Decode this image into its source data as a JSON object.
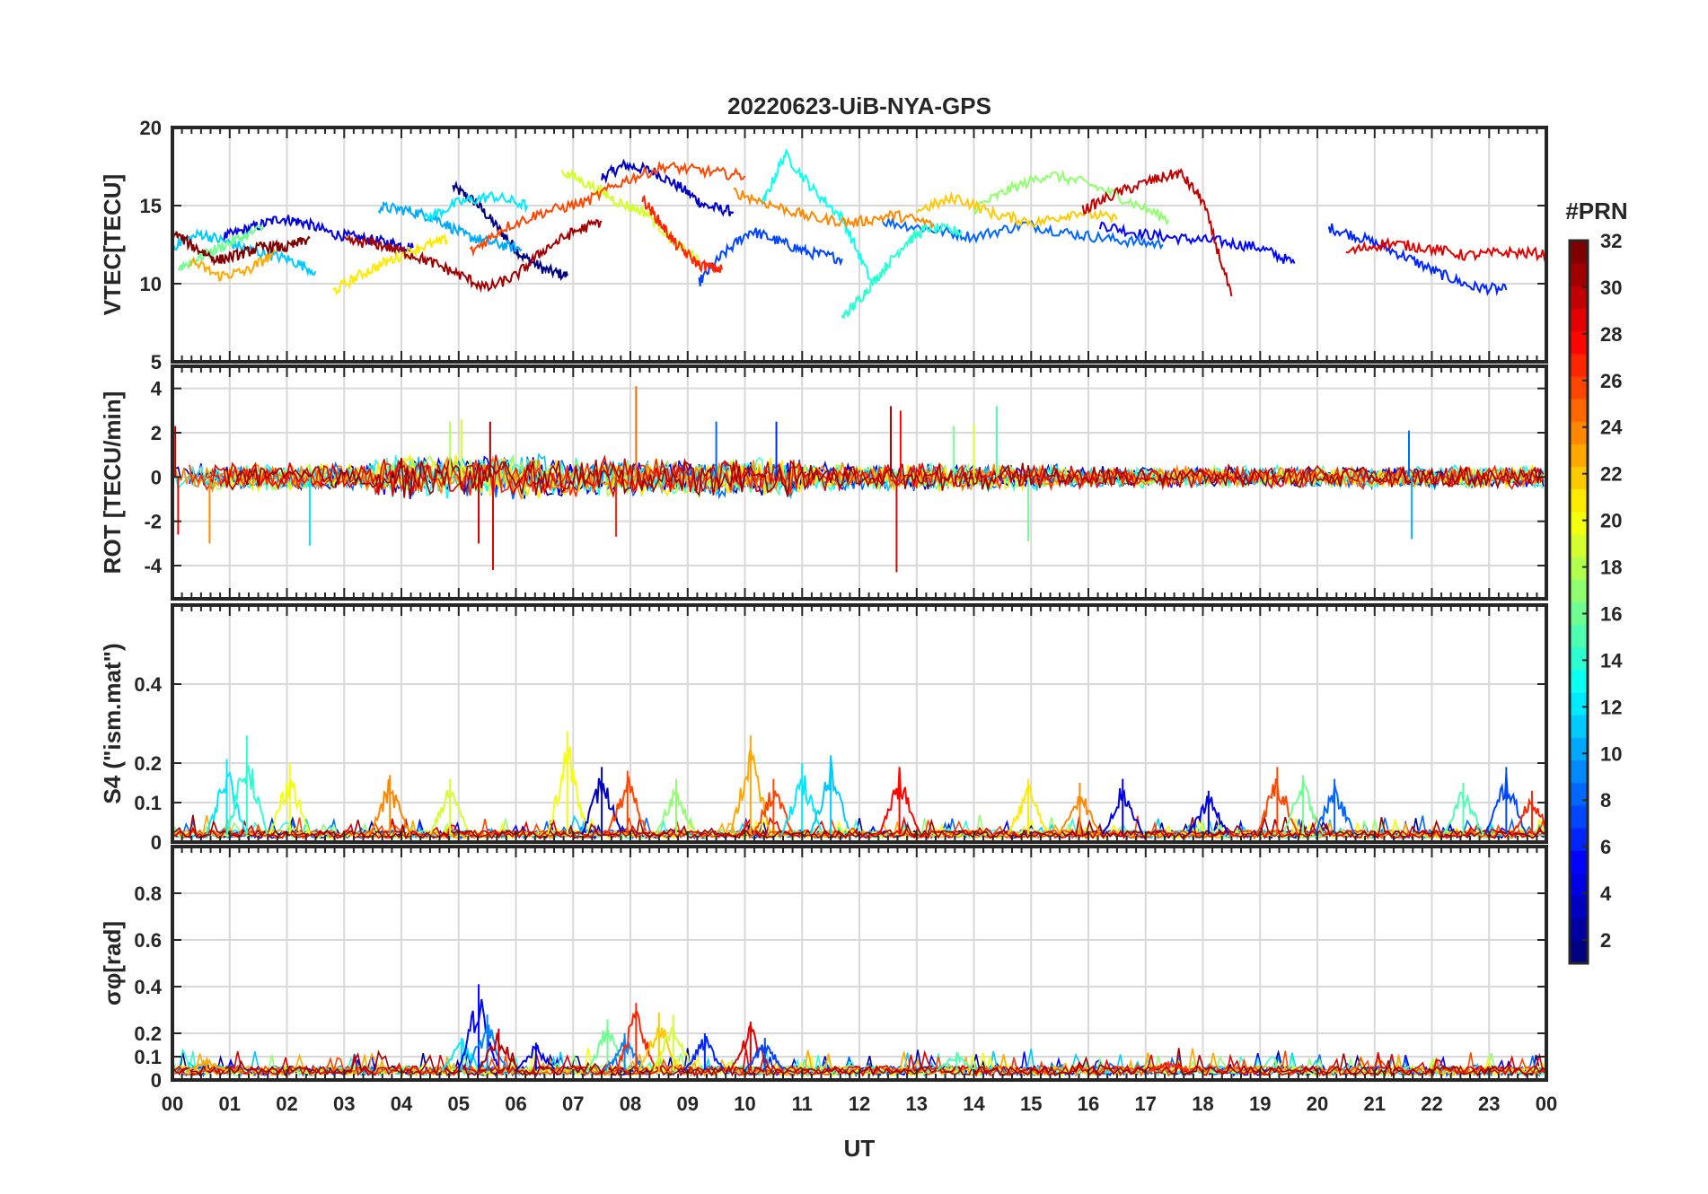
{
  "figure": {
    "title": "20220623-UiB-NYA-GPS",
    "xlabel": "UT",
    "x_ticks": [
      "00",
      "01",
      "02",
      "03",
      "04",
      "05",
      "06",
      "07",
      "08",
      "09",
      "10",
      "11",
      "12",
      "13",
      "14",
      "15",
      "16",
      "17",
      "18",
      "19",
      "20",
      "21",
      "22",
      "23",
      "00"
    ]
  },
  "colorbar": {
    "label": "#PRN",
    "colormap": "jet",
    "range": [
      1,
      32
    ],
    "ticks": [
      "2",
      "4",
      "6",
      "8",
      "10",
      "12",
      "14",
      "16",
      "18",
      "20",
      "22",
      "24",
      "26",
      "28",
      "30",
      "32"
    ]
  },
  "chart_data": [
    {
      "type": "line",
      "panel": "vtec",
      "title": "20220623-UiB-NYA-GPS",
      "ylabel": "VTEC[TECU]",
      "xlabel": "",
      "xlim": [
        0,
        24
      ],
      "ylim": [
        5,
        20
      ],
      "y_ticks": [
        "5",
        "10",
        "15",
        "20"
      ],
      "grid": true,
      "series_note_values": "per-PRN curves; values estimated",
      "series": [
        {
          "prn": 1,
          "x": [
            4.9,
            5.3,
            5.7,
            6.1,
            6.5,
            6.9
          ],
          "y": [
            16.2,
            15.2,
            13.5,
            11.8,
            10.9,
            10.5
          ]
        },
        {
          "prn": 3,
          "x": [
            7.5,
            7.9,
            8.4,
            8.9,
            9.3,
            9.8
          ],
          "y": [
            16.8,
            17.6,
            17.2,
            16.1,
            15.0,
            14.6
          ]
        },
        {
          "prn": 4,
          "x": [
            0.9,
            1.4,
            1.9,
            2.3,
            2.8,
            3.3,
            3.8,
            4.2
          ],
          "y": [
            13.0,
            13.6,
            14.2,
            13.9,
            13.2,
            12.9,
            12.6,
            12.3
          ]
        },
        {
          "prn": 5,
          "x": [
            16.2,
            16.9,
            17.6,
            18.3,
            19.0,
            19.6
          ],
          "y": [
            13.8,
            13.2,
            12.9,
            12.7,
            12.3,
            11.3
          ]
        },
        {
          "prn": 6,
          "x": [
            20.2,
            20.8,
            21.5,
            22.1,
            22.7,
            23.3
          ],
          "y": [
            13.6,
            12.9,
            11.8,
            10.7,
            9.8,
            9.6
          ]
        },
        {
          "prn": 7,
          "x": [
            9.2,
            9.6,
            10.1,
            10.6,
            11.1,
            11.7
          ],
          "y": [
            10.1,
            11.8,
            13.4,
            12.7,
            12.0,
            11.6
          ]
        },
        {
          "prn": 8,
          "x": [
            12.4,
            13.2,
            14.0,
            14.9,
            15.7,
            16.5,
            17.3
          ],
          "y": [
            14.0,
            13.5,
            13.0,
            13.8,
            13.2,
            12.8,
            12.5
          ]
        },
        {
          "prn": 10,
          "x": [
            3.6,
            4.1,
            4.6,
            5.1,
            5.6,
            6.1
          ],
          "y": [
            14.9,
            14.7,
            14.2,
            13.1,
            12.6,
            12.2
          ]
        },
        {
          "prn": 11,
          "x": [
            0.0,
            0.5,
            1.0,
            1.5,
            2.0,
            2.5
          ],
          "y": [
            12.4,
            13.2,
            12.6,
            12.0,
            11.6,
            10.8
          ]
        },
        {
          "prn": 12,
          "x": [
            4.4,
            5.0,
            5.6,
            6.2
          ],
          "y": [
            14.1,
            15.2,
            15.6,
            15.0
          ]
        },
        {
          "prn": 13,
          "x": [
            10.3,
            10.7,
            11.2,
            11.7,
            12.2
          ],
          "y": [
            15.0,
            18.3,
            16.0,
            14.2,
            10.2
          ]
        },
        {
          "prn": 14,
          "x": [
            11.7,
            12.0,
            12.4,
            12.8,
            13.2,
            13.8
          ],
          "y": [
            7.8,
            9.0,
            10.8,
            12.6,
            13.6,
            13.3
          ]
        },
        {
          "prn": 16,
          "x": [
            0.1,
            0.6,
            1.1,
            1.6
          ],
          "y": [
            11.0,
            11.9,
            12.8,
            13.6
          ]
        },
        {
          "prn": 17,
          "x": [
            14.0,
            14.6,
            15.3,
            16.0,
            16.7,
            17.4
          ],
          "y": [
            14.8,
            16.0,
            17.0,
            16.4,
            15.3,
            14.1
          ]
        },
        {
          "prn": 19,
          "x": [
            6.8,
            7.3,
            7.8,
            8.3,
            8.8,
            9.2
          ],
          "y": [
            17.2,
            16.3,
            15.2,
            14.5,
            12.5,
            11.5
          ]
        },
        {
          "prn": 21,
          "x": [
            2.8,
            3.3,
            3.8,
            4.3,
            4.8
          ],
          "y": [
            9.5,
            10.6,
            11.5,
            12.3,
            12.8
          ]
        },
        {
          "prn": 22,
          "x": [
            13.0,
            13.7,
            14.4,
            15.1,
            15.8,
            16.5
          ],
          "y": [
            14.7,
            15.5,
            14.4,
            13.9,
            14.6,
            14.1
          ]
        },
        {
          "prn": 23,
          "x": [
            0.3,
            0.8,
            1.3,
            1.8
          ],
          "y": [
            11.5,
            10.5,
            10.8,
            12.0
          ]
        },
        {
          "prn": 24,
          "x": [
            9.8,
            10.5,
            11.2,
            11.9,
            12.6,
            13.3
          ],
          "y": [
            15.9,
            15.0,
            14.2,
            13.9,
            14.4,
            13.8
          ]
        },
        {
          "prn": 26,
          "x": [
            5.2,
            5.8,
            6.5,
            7.2,
            7.9,
            8.6,
            9.3,
            10.0
          ],
          "y": [
            12.0,
            13.6,
            14.6,
            15.2,
            16.6,
            17.5,
            17.2,
            16.9
          ]
        },
        {
          "prn": 27,
          "x": [
            8.2,
            8.5,
            8.8,
            9.2,
            9.6
          ],
          "y": [
            15.5,
            14.0,
            12.5,
            11.2,
            10.9
          ]
        },
        {
          "prn": 29,
          "x": [
            20.5,
            21.2,
            21.9,
            22.6,
            23.3,
            24.0
          ],
          "y": [
            12.0,
            12.6,
            12.3,
            11.8,
            12.0,
            11.9
          ]
        },
        {
          "prn": 30,
          "x": [
            15.9,
            16.5,
            17.1,
            17.6,
            18.0,
            18.5
          ],
          "y": [
            14.7,
            15.8,
            16.6,
            17.1,
            15.3,
            9.2
          ]
        },
        {
          "prn": 31,
          "x": [
            3.0,
            3.5,
            4.0,
            4.5,
            5.0,
            5.5,
            6.0,
            6.5,
            7.0,
            7.5
          ],
          "y": [
            12.7,
            12.6,
            12.1,
            11.4,
            10.6,
            9.7,
            10.5,
            12.2,
            13.3,
            14.0
          ]
        },
        {
          "prn": 32,
          "x": [
            0.0,
            0.4,
            0.8,
            1.2,
            1.6,
            2.0,
            2.4
          ],
          "y": [
            13.3,
            12.3,
            11.5,
            11.9,
            12.4,
            12.3,
            12.9
          ]
        }
      ]
    },
    {
      "type": "line",
      "panel": "rot",
      "ylabel": "ROT [TECU/min]",
      "xlabel": "",
      "xlim": [
        0,
        24
      ],
      "ylim": [
        -5.5,
        5
      ],
      "y_ticks": [
        "-4",
        "-2",
        "0",
        "2",
        "4"
      ],
      "grid": true,
      "baseline": 0,
      "noise_envelope": [
        {
          "t0": 0,
          "t1": 3.5,
          "amp": 0.55
        },
        {
          "t0": 3.5,
          "t1": 6.5,
          "amp": 0.9
        },
        {
          "t0": 6.5,
          "t1": 11.0,
          "amp": 0.8
        },
        {
          "t0": 11.0,
          "t1": 15.5,
          "amp": 0.55
        },
        {
          "t0": 15.5,
          "t1": 24,
          "amp": 0.45
        }
      ],
      "spikes": [
        {
          "x": 0.05,
          "y": 2.3,
          "prn": 30
        },
        {
          "x": 0.1,
          "y": -2.6,
          "prn": 28
        },
        {
          "x": 0.65,
          "y": -3.0,
          "prn": 24
        },
        {
          "x": 2.4,
          "y": -3.1,
          "prn": 12
        },
        {
          "x": 4.85,
          "y": 2.5,
          "prn": 18
        },
        {
          "x": 5.05,
          "y": 2.6,
          "prn": 19
        },
        {
          "x": 5.35,
          "y": -3.0,
          "prn": 30
        },
        {
          "x": 5.55,
          "y": 2.5,
          "prn": 31
        },
        {
          "x": 5.6,
          "y": -4.2,
          "prn": 29
        },
        {
          "x": 7.75,
          "y": -2.7,
          "prn": 27
        },
        {
          "x": 8.1,
          "y": 4.1,
          "prn": 25
        },
        {
          "x": 9.5,
          "y": 2.5,
          "prn": 8
        },
        {
          "x": 10.55,
          "y": 2.5,
          "prn": 6
        },
        {
          "x": 12.55,
          "y": 3.2,
          "prn": 31
        },
        {
          "x": 12.65,
          "y": -4.3,
          "prn": 29
        },
        {
          "x": 12.72,
          "y": 3.0,
          "prn": 28
        },
        {
          "x": 13.65,
          "y": 2.3,
          "prn": 16
        },
        {
          "x": 14.0,
          "y": 2.4,
          "prn": 19
        },
        {
          "x": 14.4,
          "y": 3.2,
          "prn": 15
        },
        {
          "x": 14.95,
          "y": -2.9,
          "prn": 16
        },
        {
          "x": 21.6,
          "y": 2.1,
          "prn": 8
        },
        {
          "x": 21.65,
          "y": -2.8,
          "prn": 10
        }
      ],
      "series_note_values": "dense per-PRN noise around zero; values estimated"
    },
    {
      "type": "line",
      "panel": "s4",
      "ylabel": "S4 (\"ism.mat\")",
      "xlabel": "",
      "xlim": [
        0,
        24
      ],
      "ylim": [
        0,
        0.6
      ],
      "y_ticks": [
        "0",
        "0.1",
        "0.2",
        "0.4"
      ],
      "grid": true,
      "baseline": 0.02,
      "peaks": [
        {
          "x": 0.95,
          "y": 0.21,
          "prn": 12
        },
        {
          "x": 1.3,
          "y": 0.27,
          "prn": 14
        },
        {
          "x": 2.05,
          "y": 0.2,
          "prn": 20
        },
        {
          "x": 3.8,
          "y": 0.17,
          "prn": 24
        },
        {
          "x": 4.85,
          "y": 0.16,
          "prn": 19
        },
        {
          "x": 6.9,
          "y": 0.28,
          "prn": 20
        },
        {
          "x": 7.5,
          "y": 0.19,
          "prn": 3
        },
        {
          "x": 7.95,
          "y": 0.18,
          "prn": 26
        },
        {
          "x": 8.8,
          "y": 0.16,
          "prn": 17
        },
        {
          "x": 10.1,
          "y": 0.27,
          "prn": 23
        },
        {
          "x": 10.5,
          "y": 0.16,
          "prn": 26
        },
        {
          "x": 11.0,
          "y": 0.2,
          "prn": 12
        },
        {
          "x": 11.5,
          "y": 0.22,
          "prn": 11
        },
        {
          "x": 12.7,
          "y": 0.19,
          "prn": 28
        },
        {
          "x": 14.95,
          "y": 0.16,
          "prn": 21
        },
        {
          "x": 15.85,
          "y": 0.15,
          "prn": 24
        },
        {
          "x": 16.6,
          "y": 0.16,
          "prn": 4
        },
        {
          "x": 18.1,
          "y": 0.13,
          "prn": 4
        },
        {
          "x": 19.3,
          "y": 0.19,
          "prn": 26
        },
        {
          "x": 19.75,
          "y": 0.17,
          "prn": 16
        },
        {
          "x": 20.3,
          "y": 0.16,
          "prn": 8
        },
        {
          "x": 22.55,
          "y": 0.15,
          "prn": 15
        },
        {
          "x": 23.3,
          "y": 0.19,
          "prn": 7
        },
        {
          "x": 23.75,
          "y": 0.13,
          "prn": 27
        }
      ],
      "series_note_values": "per-PRN S4 traces near baseline with bursts; values estimated"
    },
    {
      "type": "line",
      "panel": "sigma_phi",
      "ylabel": "σφ[rad]",
      "xlabel": "UT",
      "xlim": [
        0,
        24
      ],
      "ylim": [
        0,
        1.0
      ],
      "y_ticks": [
        "0",
        "0.1",
        "0.2",
        "0.4",
        "0.6",
        "0.8"
      ],
      "grid": true,
      "baseline": 0.04,
      "peaks": [
        {
          "x": 0.6,
          "y": 0.09,
          "prn": 23
        },
        {
          "x": 5.05,
          "y": 0.18,
          "prn": 12
        },
        {
          "x": 5.35,
          "y": 0.41,
          "prn": 5
        },
        {
          "x": 5.5,
          "y": 0.28,
          "prn": 9
        },
        {
          "x": 5.7,
          "y": 0.22,
          "prn": 30
        },
        {
          "x": 6.35,
          "y": 0.16,
          "prn": 4
        },
        {
          "x": 7.6,
          "y": 0.26,
          "prn": 16
        },
        {
          "x": 7.9,
          "y": 0.2,
          "prn": 9
        },
        {
          "x": 8.1,
          "y": 0.33,
          "prn": 27
        },
        {
          "x": 8.5,
          "y": 0.29,
          "prn": 22
        },
        {
          "x": 8.75,
          "y": 0.28,
          "prn": 19
        },
        {
          "x": 9.3,
          "y": 0.2,
          "prn": 6
        },
        {
          "x": 10.1,
          "y": 0.25,
          "prn": 29
        },
        {
          "x": 10.35,
          "y": 0.18,
          "prn": 7
        },
        {
          "x": 13.7,
          "y": 0.12,
          "prn": 15
        },
        {
          "x": 17.4,
          "y": 0.08,
          "prn": 27
        }
      ],
      "series_note_values": "per-PRN σφ traces near baseline with bursts; values estimated"
    }
  ]
}
